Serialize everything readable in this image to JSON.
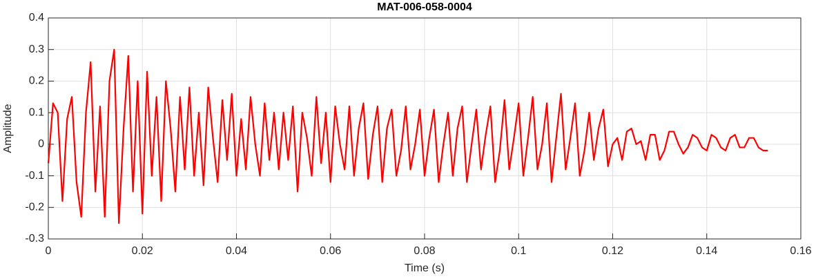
{
  "chart_data": {
    "type": "line",
    "title": "MAT-006-058-0004",
    "xlabel": "Time (s)",
    "ylabel": "Amplitude",
    "xlim": [
      0,
      0.16
    ],
    "xticks": [
      0,
      0.02,
      0.04,
      0.06,
      0.08,
      0.1,
      0.12,
      0.14,
      0.16
    ],
    "ylim": [
      -0.3,
      0.4
    ],
    "yticks": [
      -0.3,
      -0.2,
      -0.1,
      0,
      0.1,
      0.2,
      0.3,
      0.4
    ],
    "grid": true,
    "x": [
      0,
      0.001,
      0.002,
      0.003,
      0.004,
      0.005,
      0.006,
      0.007,
      0.008,
      0.009,
      0.01,
      0.011,
      0.012,
      0.013,
      0.014,
      0.015,
      0.016,
      0.017,
      0.018,
      0.019,
      0.02,
      0.021,
      0.022,
      0.023,
      0.024,
      0.025,
      0.026,
      0.027,
      0.028,
      0.029,
      0.03,
      0.031,
      0.032,
      0.033,
      0.034,
      0.035,
      0.036,
      0.037,
      0.038,
      0.039,
      0.04,
      0.041,
      0.042,
      0.043,
      0.044,
      0.045,
      0.046,
      0.047,
      0.048,
      0.049,
      0.05,
      0.051,
      0.052,
      0.053,
      0.054,
      0.055,
      0.056,
      0.057,
      0.058,
      0.059,
      0.06,
      0.061,
      0.062,
      0.063,
      0.064,
      0.065,
      0.066,
      0.067,
      0.068,
      0.069,
      0.07,
      0.071,
      0.072,
      0.073,
      0.074,
      0.075,
      0.076,
      0.077,
      0.078,
      0.079,
      0.08,
      0.081,
      0.082,
      0.083,
      0.084,
      0.085,
      0.086,
      0.087,
      0.088,
      0.089,
      0.09,
      0.091,
      0.092,
      0.093,
      0.094,
      0.095,
      0.096,
      0.097,
      0.098,
      0.099,
      0.1,
      0.101,
      0.102,
      0.103,
      0.104,
      0.105,
      0.106,
      0.107,
      0.108,
      0.109,
      0.11,
      0.111,
      0.112,
      0.113,
      0.114,
      0.115,
      0.116,
      0.117,
      0.118,
      0.119,
      0.12,
      0.121,
      0.122,
      0.123,
      0.124,
      0.125,
      0.126,
      0.127,
      0.128,
      0.129,
      0.13,
      0.131,
      0.132,
      0.133,
      0.134,
      0.135,
      0.136,
      0.137,
      0.138,
      0.139,
      0.14,
      0.141,
      0.142,
      0.143,
      0.144,
      0.145,
      0.146,
      0.147,
      0.148,
      0.149,
      0.15,
      0.151,
      0.152,
      0.153
    ],
    "series": [
      {
        "color": "#ff0000",
        "values": [
          -0.06,
          0.13,
          0.1,
          -0.18,
          0.08,
          0.15,
          -0.12,
          -0.23,
          0.1,
          0.26,
          -0.15,
          0.12,
          -0.23,
          0.2,
          0.3,
          -0.25,
          0.05,
          0.28,
          -0.15,
          0.2,
          -0.22,
          0.23,
          -0.1,
          0.15,
          -0.18,
          0.2,
          0.05,
          -0.15,
          0.15,
          -0.08,
          0.18,
          -0.1,
          0.1,
          -0.13,
          0.18,
          0.02,
          -0.12,
          0.14,
          -0.05,
          0.16,
          -0.1,
          0.08,
          -0.08,
          0.15,
          0,
          -0.1,
          0.13,
          -0.05,
          0.1,
          -0.08,
          0.1,
          -0.05,
          0.12,
          -0.15,
          0.1,
          0.02,
          -0.1,
          0.15,
          -0.06,
          0.1,
          -0.12,
          0.12,
          0,
          -0.08,
          0.12,
          -0.1,
          0.05,
          0.13,
          -0.11,
          0.03,
          0.12,
          -0.12,
          0.05,
          0.11,
          -0.1,
          -0.02,
          0.12,
          -0.08,
          0,
          0.11,
          -0.1,
          0.02,
          0.11,
          -0.12,
          0,
          0.1,
          -0.1,
          0.05,
          0.12,
          -0.12,
          0,
          0.11,
          -0.08,
          0.03,
          0.12,
          -0.12,
          -0.02,
          0.14,
          -0.08,
          0.02,
          0.13,
          -0.1,
          0.02,
          0.15,
          -0.08,
          0,
          0.13,
          -0.12,
          0.02,
          0.16,
          -0.08,
          0.02,
          0.13,
          -0.1,
          -0.02,
          0.1,
          -0.05,
          0.05,
          0.11,
          -0.07,
          0,
          0.02,
          -0.05,
          0.04,
          0.05,
          0,
          0.01,
          -0.05,
          0.03,
          0.03,
          -0.05,
          -0.02,
          0.04,
          0.04,
          0,
          -0.03,
          -0.01,
          0.03,
          0.02,
          -0.01,
          -0.02,
          0.03,
          0.02,
          -0.01,
          -0.02,
          0.02,
          0.03,
          -0.01,
          -0.01,
          0.02,
          0.02,
          -0.01,
          -0.02,
          -0.02
        ]
      }
    ]
  }
}
